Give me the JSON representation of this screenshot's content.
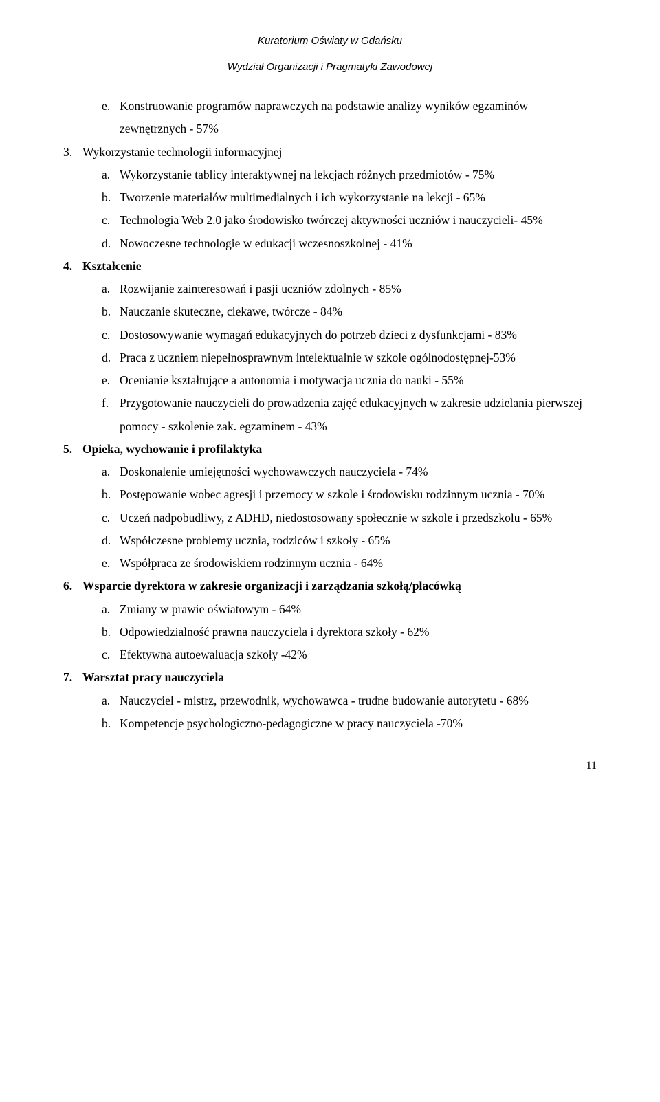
{
  "header": {
    "line1": "Kuratorium Oświaty w Gdańsku",
    "line2": "Wydział Organizacji i Pragmatyki Zawodowej"
  },
  "sections": [
    {
      "num": "",
      "title": "",
      "bold": false,
      "items": [
        {
          "m": "e.",
          "t": "Konstruowanie programów naprawczych na podstawie analizy wyników egzaminów zewnętrznych - 57%"
        }
      ]
    },
    {
      "num": "3.",
      "title": "Wykorzystanie technologii informacyjnej",
      "bold": false,
      "items": [
        {
          "m": "a.",
          "t": "Wykorzystanie tablicy interaktywnej na lekcjach różnych przedmiotów - 75%"
        },
        {
          "m": "b.",
          "t": "Tworzenie materiałów multimedialnych i ich wykorzystanie na lekcji - 65%"
        },
        {
          "m": "c.",
          "t": "Technologia Web 2.0 jako środowisko twórczej aktywności uczniów i nauczycieli- 45%"
        },
        {
          "m": "d.",
          "t": "Nowoczesne technologie w edukacji wczesnoszkolnej - 41%"
        }
      ]
    },
    {
      "num": "4.",
      "title": "Kształcenie",
      "bold": true,
      "items": [
        {
          "m": "a.",
          "t": "Rozwijanie zainteresowań i pasji uczniów zdolnych - 85%"
        },
        {
          "m": "b.",
          "t": "Nauczanie skuteczne, ciekawe, twórcze - 84%"
        },
        {
          "m": "c.",
          "t": "Dostosowywanie wymagań edukacyjnych do potrzeb dzieci z dysfunkcjami - 83%"
        },
        {
          "m": "d.",
          "t": "Praca z uczniem niepełnosprawnym intelektualnie w szkole ogólnodostępnej-53%"
        },
        {
          "m": "e.",
          "t": "Ocenianie kształtujące a autonomia i motywacja ucznia do nauki - 55%"
        },
        {
          "m": "f.",
          "t": "Przygotowanie nauczycieli do prowadzenia zajęć edukacyjnych w zakresie udzielania pierwszej pomocy - szkolenie zak. egzaminem - 43%"
        }
      ]
    },
    {
      "num": "5.",
      "title": "Opieka, wychowanie i profilaktyka",
      "bold": true,
      "items": [
        {
          "m": "a.",
          "t": "Doskonalenie umiejętności wychowawczych nauczyciela - 74%"
        },
        {
          "m": "b.",
          "t": "Postępowanie wobec agresji i przemocy w szkole i środowisku rodzinnym ucznia - 70%"
        },
        {
          "m": "c.",
          "t": "Uczeń nadpobudliwy, z ADHD, niedostosowany społecznie w szkole i przedszkolu - 65%"
        },
        {
          "m": "d.",
          "t": "Współczesne problemy ucznia, rodziców i szkoły - 65%"
        },
        {
          "m": "e.",
          "t": "Współpraca ze środowiskiem rodzinnym ucznia - 64%"
        }
      ]
    },
    {
      "num": "6.",
      "title": "Wsparcie dyrektora w zakresie organizacji i zarządzania szkołą/placówką",
      "bold": true,
      "items": [
        {
          "m": "a.",
          "t": "Zmiany w prawie oświatowym - 64%"
        },
        {
          "m": "b.",
          "t": "Odpowiedzialność prawna nauczyciela i dyrektora szkoły - 62%"
        },
        {
          "m": "c.",
          "t": "Efektywna autoewaluacja szkoły -42%"
        }
      ]
    },
    {
      "num": "7.",
      "title": "Warsztat pracy nauczyciela",
      "bold": true,
      "items": [
        {
          "m": "a.",
          "t": "Nauczyciel - mistrz, przewodnik, wychowawca - trudne budowanie autorytetu - 68%"
        },
        {
          "m": "b.",
          "t": "Kompetencje psychologiczno-pedagogiczne w pracy nauczyciela -70%"
        }
      ]
    }
  ],
  "pageNumber": "11"
}
